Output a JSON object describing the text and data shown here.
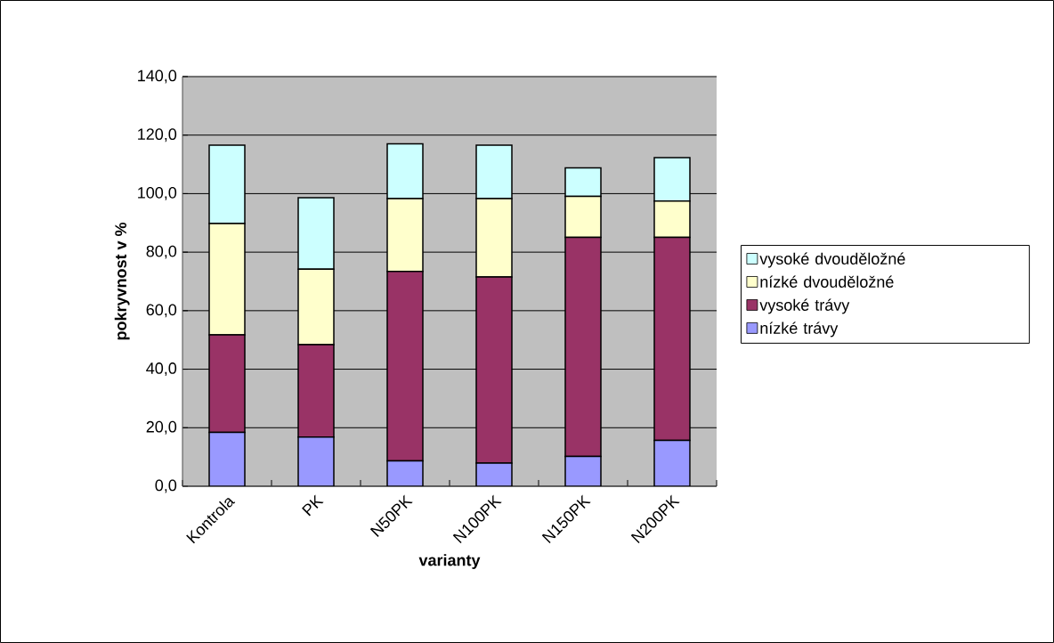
{
  "chart_data": {
    "type": "bar",
    "stacked": true,
    "xlabel": "varianty",
    "ylabel": "pokryvnost v %",
    "categories": [
      "Kontrola",
      "PK",
      "N50PK",
      "N100PK",
      "N150PK",
      "N200PK"
    ],
    "series": [
      {
        "name": "nízké trávy",
        "color": "#9999ff",
        "values": [
          18.4,
          16.8,
          8.7,
          7.9,
          10.2,
          15.7
        ]
      },
      {
        "name": "vysoké trávy",
        "color": "#993366",
        "values": [
          33.3,
          31.6,
          64.7,
          63.6,
          74.9,
          69.4
        ]
      },
      {
        "name": "nízké dvouděložné",
        "color": "#ffffcc",
        "values": [
          38.1,
          25.8,
          24.9,
          26.8,
          14.0,
          12.4
        ]
      },
      {
        "name": "vysoké  dvouděložné",
        "color": "#ccffff",
        "values": [
          26.8,
          24.4,
          18.7,
          18.3,
          9.7,
          14.8
        ]
      }
    ],
    "ylim": [
      0,
      140
    ],
    "yticks": [
      {
        "value": 0,
        "label": "0,0"
      },
      {
        "value": 20,
        "label": "20,0"
      },
      {
        "value": 40,
        "label": "40,0"
      },
      {
        "value": 60,
        "label": "60,0"
      },
      {
        "value": 80,
        "label": "80,0"
      },
      {
        "value": 100,
        "label": "100,0"
      },
      {
        "value": 120,
        "label": "120,0"
      },
      {
        "value": 140,
        "label": "140,0"
      }
    ],
    "grid": "y",
    "legend": "right"
  }
}
